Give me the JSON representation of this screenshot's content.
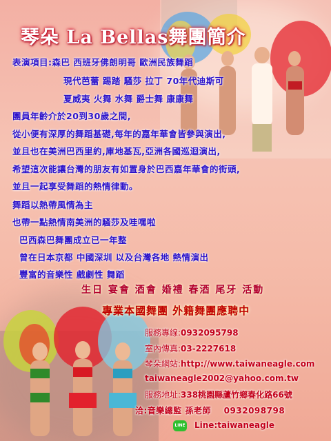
{
  "title": "琴朵 La Bellas舞團簡介",
  "intro": {
    "line1": "表演項目:森巴 西班牙佛朗明哥 歐洲民族舞蹈",
    "line2": "現代芭蕾 踢踏 騷莎 拉丁 70年代迪斯可",
    "line3": "夏威夷 火舞 水舞 爵士舞 康康舞",
    "line4": "團員年齡介於20到30歲之間,",
    "line5": "從小便有深厚的舞蹈基礎,每年的嘉年華會皆參與演出,",
    "line6": "並且也在美洲巴西里約,庫地基瓦,亞洲各國巡迴演出,",
    "line7": "希望這次能讓台灣的朋友有如置身於巴西嘉年華會的街頭,",
    "line8": "並且一起享受舞蹈的熱情律動。",
    "line9": "舞蹈以熱帶風情為主",
    "line10": "也帶一點熱情南美洲的騷莎及哇嘿啦",
    "line11": "巴西森巴舞團成立已一年整",
    "line12": "曾在日本京都 中國深圳 以及台灣各地 熱情演出",
    "line13": "豐富的音樂性 戲劇性 舞蹈"
  },
  "events": "生日 宴會 酒會 婚禮 春酒 尾牙 活動",
  "recruit": "專業本國舞團 外籍舞團應聘中",
  "contact": {
    "hotline_label": "服務專線:",
    "hotline": "0932095798",
    "fax_label": "室內傳真:",
    "fax": "03-2227618",
    "web_label": "琴朵網站:",
    "web": "http://www.taiwaneagle.com",
    "email": "taiwaneagle2002@yahoo.com.tw",
    "address_label": "服務地址:",
    "address": "338桃園縣蘆竹鄉春化路66號",
    "inquiry": "洽:音樂總監 孫老師",
    "inquiry_phone": "0932098798",
    "line_badge": "LINE",
    "line_id": "Line:taiwaneagle"
  },
  "colors": {
    "background": "#f4b6a7",
    "title_glow": "#c2001b",
    "body_text": "#2c12c9",
    "events_text": "#b3002c",
    "contact_text": "#c3001a"
  }
}
